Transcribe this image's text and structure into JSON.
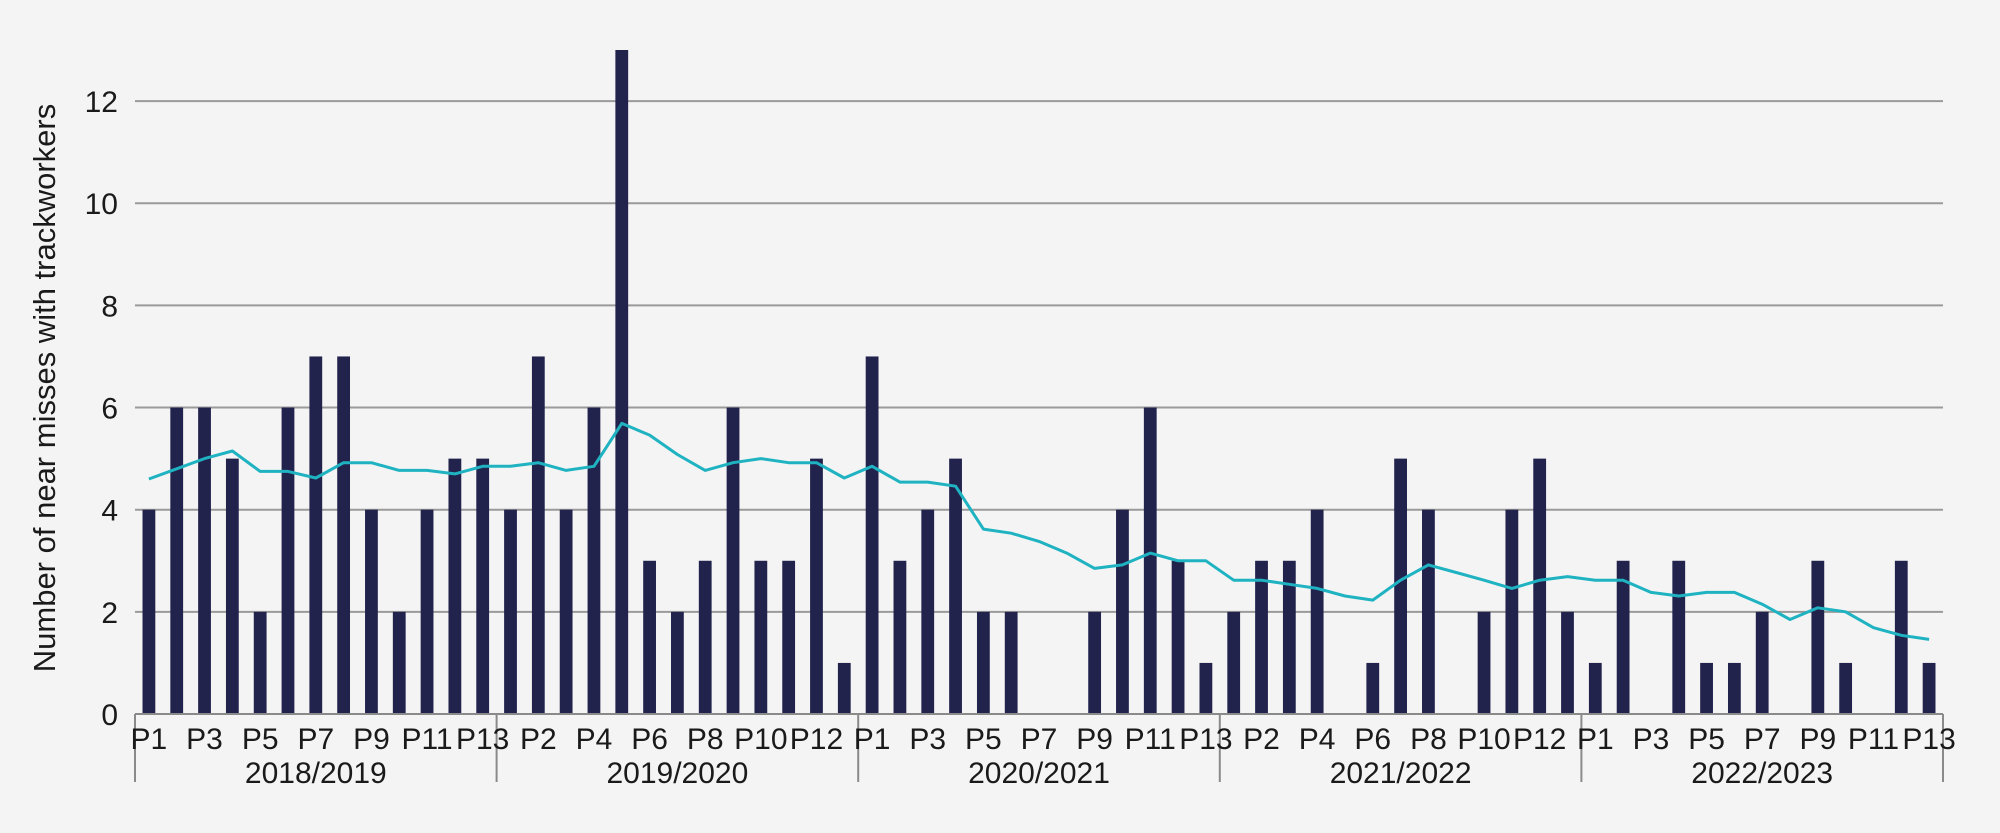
{
  "chart_data": {
    "type": "bar",
    "title": "",
    "xlabel": "",
    "ylabel": "Number of near misses with trackworkers",
    "ylim": [
      0,
      13
    ],
    "yticks": [
      0,
      2,
      4,
      6,
      8,
      10,
      12
    ],
    "grid": true,
    "colors": {
      "bar": "#22234d",
      "line": "#1fb3c2",
      "grid": "#9a9a9a",
      "axis": "#8a8a8a"
    },
    "groups": [
      {
        "label": "2018/2019",
        "categories": [
          "P1",
          "P2",
          "P3",
          "P4",
          "P5",
          "P6",
          "P7",
          "P8",
          "P9",
          "P10",
          "P11",
          "P12",
          "P13"
        ],
        "shown_tick_labels": [
          "P1",
          "P3",
          "P5",
          "P7",
          "P9",
          "P11",
          "P13"
        ],
        "values": [
          4,
          6,
          6,
          5,
          2,
          6,
          7,
          7,
          4,
          2,
          4,
          5,
          5
        ],
        "trend": [
          4.6,
          4.8,
          5.0,
          5.15,
          4.75,
          4.75,
          4.62,
          4.92,
          4.92,
          4.77,
          4.77,
          4.7,
          4.85
        ]
      },
      {
        "label": "2019/2020",
        "categories": [
          "P1",
          "P2",
          "P3",
          "P4",
          "P5",
          "P6",
          "P7",
          "P8",
          "P9",
          "P10",
          "P11",
          "P12",
          "P13"
        ],
        "shown_tick_labels": [
          "P2",
          "P4",
          "P6",
          "P8",
          "P10",
          "P12"
        ],
        "values": [
          4,
          7,
          4,
          6,
          13,
          3,
          2,
          3,
          6,
          3,
          3,
          5,
          1
        ],
        "trend": [
          4.85,
          4.92,
          4.77,
          4.85,
          5.69,
          5.46,
          5.08,
          4.77,
          4.92,
          5.0,
          4.92,
          4.92,
          4.62
        ]
      },
      {
        "label": "2020/2021",
        "categories": [
          "P1",
          "P2",
          "P3",
          "P4",
          "P5",
          "P6",
          "P7",
          "P8",
          "P9",
          "P10",
          "P11",
          "P12",
          "P13"
        ],
        "shown_tick_labels": [
          "P1",
          "P3",
          "P5",
          "P7",
          "P9",
          "P11",
          "P13"
        ],
        "values": [
          7,
          3,
          4,
          5,
          2,
          2,
          0,
          0,
          2,
          4,
          6,
          3,
          1
        ],
        "trend": [
          4.85,
          4.54,
          4.54,
          4.46,
          3.62,
          3.54,
          3.38,
          3.15,
          2.85,
          2.92,
          3.15,
          3.0,
          3.0
        ]
      },
      {
        "label": "2021/2022",
        "categories": [
          "P1",
          "P2",
          "P3",
          "P4",
          "P5",
          "P6",
          "P7",
          "P8",
          "P9",
          "P10",
          "P11",
          "P12",
          "P13"
        ],
        "shown_tick_labels": [
          "P2",
          "P4",
          "P6",
          "P8",
          "P10",
          "P12"
        ],
        "values": [
          2,
          3,
          3,
          4,
          0,
          1,
          5,
          4,
          0,
          2,
          4,
          5,
          2
        ],
        "trend": [
          2.62,
          2.62,
          2.54,
          2.46,
          2.31,
          2.23,
          2.62,
          2.92,
          2.77,
          2.62,
          2.46,
          2.62,
          2.69
        ]
      },
      {
        "label": "2022/2023",
        "categories": [
          "P1",
          "P2",
          "P3",
          "P4",
          "P5",
          "P6",
          "P7",
          "P8",
          "P9",
          "P10",
          "P11",
          "P12",
          "P13"
        ],
        "shown_tick_labels": [
          "P1",
          "P3",
          "P5",
          "P7",
          "P9",
          "P11",
          "P13"
        ],
        "values": [
          1,
          3,
          0,
          3,
          1,
          1,
          2,
          0,
          3,
          1,
          0,
          3,
          1
        ],
        "trend": [
          2.62,
          2.62,
          2.38,
          2.31,
          2.38,
          2.38,
          2.15,
          1.85,
          2.08,
          2.0,
          1.69,
          1.54,
          1.46
        ]
      }
    ]
  }
}
